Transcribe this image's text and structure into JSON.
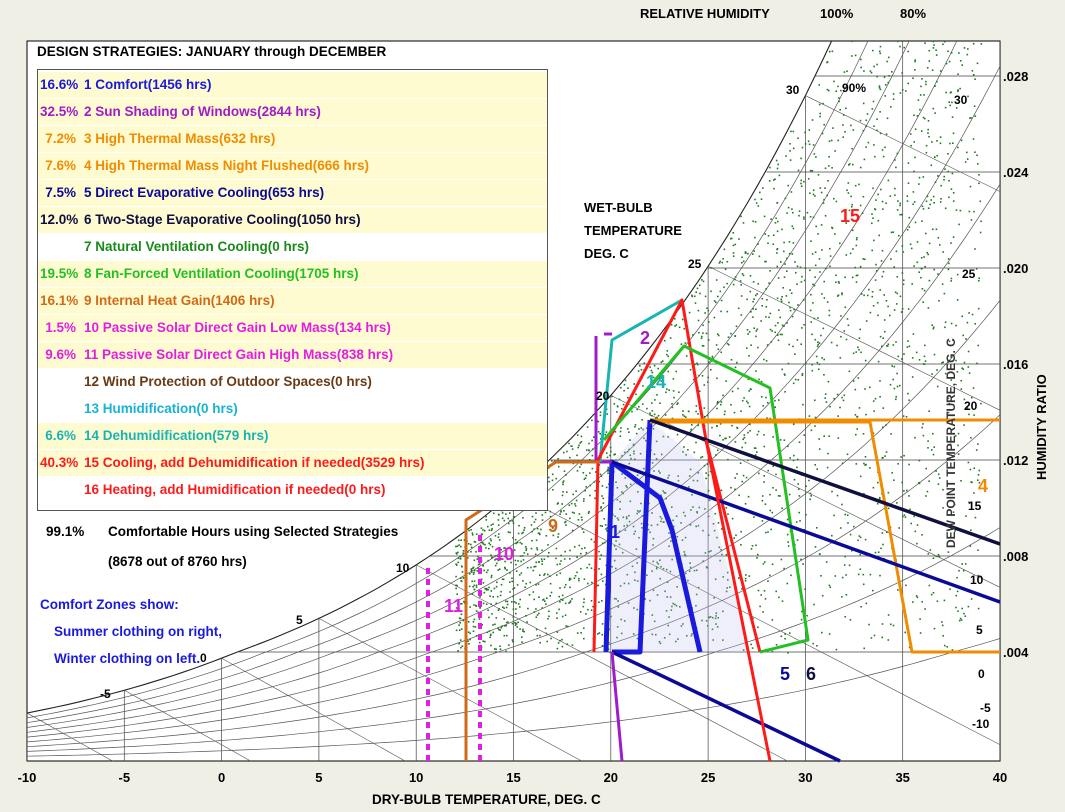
{
  "chart_data": {
    "type": "scatter",
    "title": "DESIGN STRATEGIES:  JANUARY through DECEMBER",
    "xlabel": "DRY-BULB TEMPERATURE, DEG. C",
    "ylabel": "HUMIDITY RATIO",
    "xlim": [
      -10,
      40
    ],
    "ylim": [
      0,
      0.03
    ],
    "x_ticks": [
      "-10",
      "-5",
      "0",
      "5",
      "10",
      "15",
      "20",
      "25",
      "30",
      "35",
      "40"
    ],
    "y_ticks": [
      ".004",
      ".008",
      ".012",
      ".016",
      ".020",
      ".024",
      ".028"
    ],
    "rh_label": "RELATIVE HUMIDITY",
    "rh_top_labels": [
      "100%",
      "80%"
    ],
    "rh_inner_label": "90%",
    "wb_label_lines": [
      "WET-BULB",
      "TEMPERATURE",
      "DEG. C"
    ],
    "wb_values": [
      "-5",
      "0",
      "5",
      "10",
      "15",
      "20",
      "25",
      "30"
    ],
    "dew_label": "DEW POINT TEMPERATURE, DEG. C",
    "dew_values": [
      "30",
      "25",
      "20",
      "15",
      "10",
      "5",
      "0",
      "-5",
      "-10"
    ],
    "strategies": [
      {
        "pct": "16.6%",
        "text": "1  Comfort(1456 hrs)",
        "color": "#1a1adc",
        "bg": "#fffbd0"
      },
      {
        "pct": "32.5%",
        "text": "2  Sun Shading of Windows(2844 hrs)",
        "color": "#a01cc8",
        "bg": "#fffbd0"
      },
      {
        "pct": "7.2%",
        "text": "3  High Thermal Mass(632 hrs)",
        "color": "#f08c00",
        "bg": "#fffbd0"
      },
      {
        "pct": "7.6%",
        "text": "4  High Thermal Mass Night Flushed(666 hrs)",
        "color": "#f08c00",
        "bg": "#fffbd0"
      },
      {
        "pct": "7.5%",
        "text": "5  Direct Evaporative Cooling(653 hrs)",
        "color": "#0a0a96",
        "bg": "#fffbd0"
      },
      {
        "pct": "12.0%",
        "text": "6  Two-Stage Evaporative Cooling(1050 hrs)",
        "color": "#101040",
        "bg": "#fffbd0"
      },
      {
        "pct": "",
        "text": "7  Natural Ventilation Cooling(0 hrs)",
        "color": "#1a8a1a",
        "bg": "#ffffff"
      },
      {
        "pct": "19.5%",
        "text": "8  Fan-Forced Ventilation Cooling(1705 hrs)",
        "color": "#22c022",
        "bg": "#fffbd0"
      },
      {
        "pct": "16.1%",
        "text": "9  Internal Heat Gain(1406 hrs)",
        "color": "#d06a18",
        "bg": "#fffbd0"
      },
      {
        "pct": "1.5%",
        "text": "10  Passive Solar Direct Gain Low Mass(134 hrs)",
        "color": "#e21ee2",
        "bg": "#fffbd0"
      },
      {
        "pct": "9.6%",
        "text": "11  Passive Solar Direct Gain High Mass(838 hrs)",
        "color": "#e21ee2",
        "bg": "#fffbd0"
      },
      {
        "pct": "",
        "text": "12  Wind Protection of Outdoor Spaces(0 hrs)",
        "color": "#6a3a14",
        "bg": "#ffffff"
      },
      {
        "pct": "",
        "text": "13  Humidification(0 hrs)",
        "color": "#18b4d0",
        "bg": "#ffffff"
      },
      {
        "pct": "6.6%",
        "text": "14  Dehumidification(579 hrs)",
        "color": "#18b4b4",
        "bg": "#fffbd0"
      },
      {
        "pct": "40.3%",
        "text": "15  Cooling, add Dehumidification if needed(3529 hrs)",
        "color": "#ff1a1a",
        "bg": "#fffbd0"
      },
      {
        "pct": "",
        "text": "16  Heating, add Humidification if needed(0 hrs)",
        "color": "#ff1a1a",
        "bg": "#ffffff"
      }
    ],
    "summary": {
      "pct": "99.1%",
      "line1": "Comfortable Hours using Selected Strategies",
      "line2": "(8678 out of 8760 hrs)"
    },
    "comfort_note": [
      "Comfort Zones show:",
      "Summer clothing on right,",
      "Winter clothing on left."
    ],
    "zone_labels": [
      "1",
      "2",
      "4",
      "5",
      "6",
      "9",
      "10",
      "11",
      "14",
      "15"
    ],
    "point_color": "#1f7a1f"
  }
}
